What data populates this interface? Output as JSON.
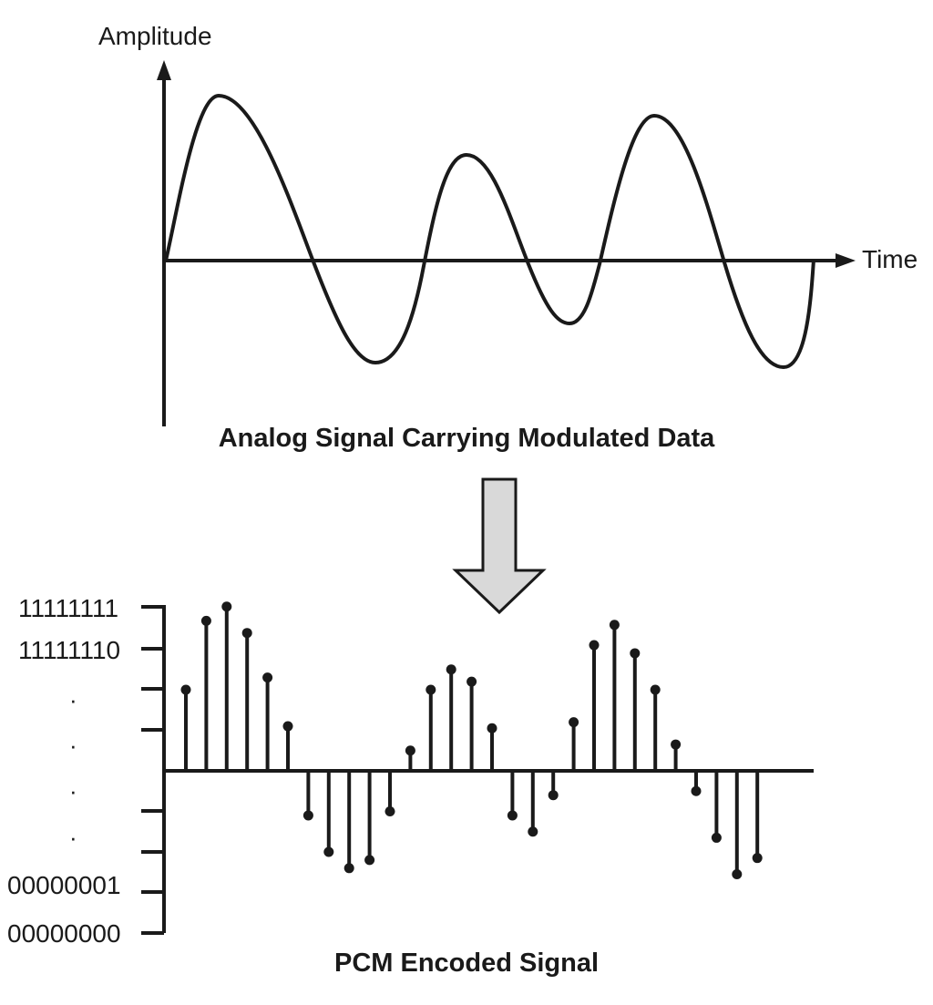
{
  "analog": {
    "axis_y_label": "Amplitude",
    "axis_x_label": "Time",
    "caption": "Analog Signal Carrying Modulated Data"
  },
  "pcm": {
    "caption": "PCM Encoded Signal",
    "tick_labels": {
      "max": "11111111",
      "second": "11111110",
      "ellipsis": [
        "·",
        "·",
        "·",
        "·"
      ],
      "one": "00000001",
      "zero": "00000000"
    },
    "samples": [
      2.0,
      3.7,
      4.05,
      3.4,
      2.3,
      1.1,
      -1.1,
      -2.0,
      -2.4,
      -2.2,
      -1.0,
      0.5,
      2.0,
      2.5,
      2.2,
      1.05,
      -1.1,
      -1.5,
      -0.6,
      1.2,
      3.1,
      3.6,
      2.9,
      2.0,
      0.65,
      -0.5,
      -1.65,
      -2.55,
      -2.15
    ]
  },
  "colors": {
    "ink": "#1a1a1a",
    "arrow_fill": "#d9d9d9"
  }
}
